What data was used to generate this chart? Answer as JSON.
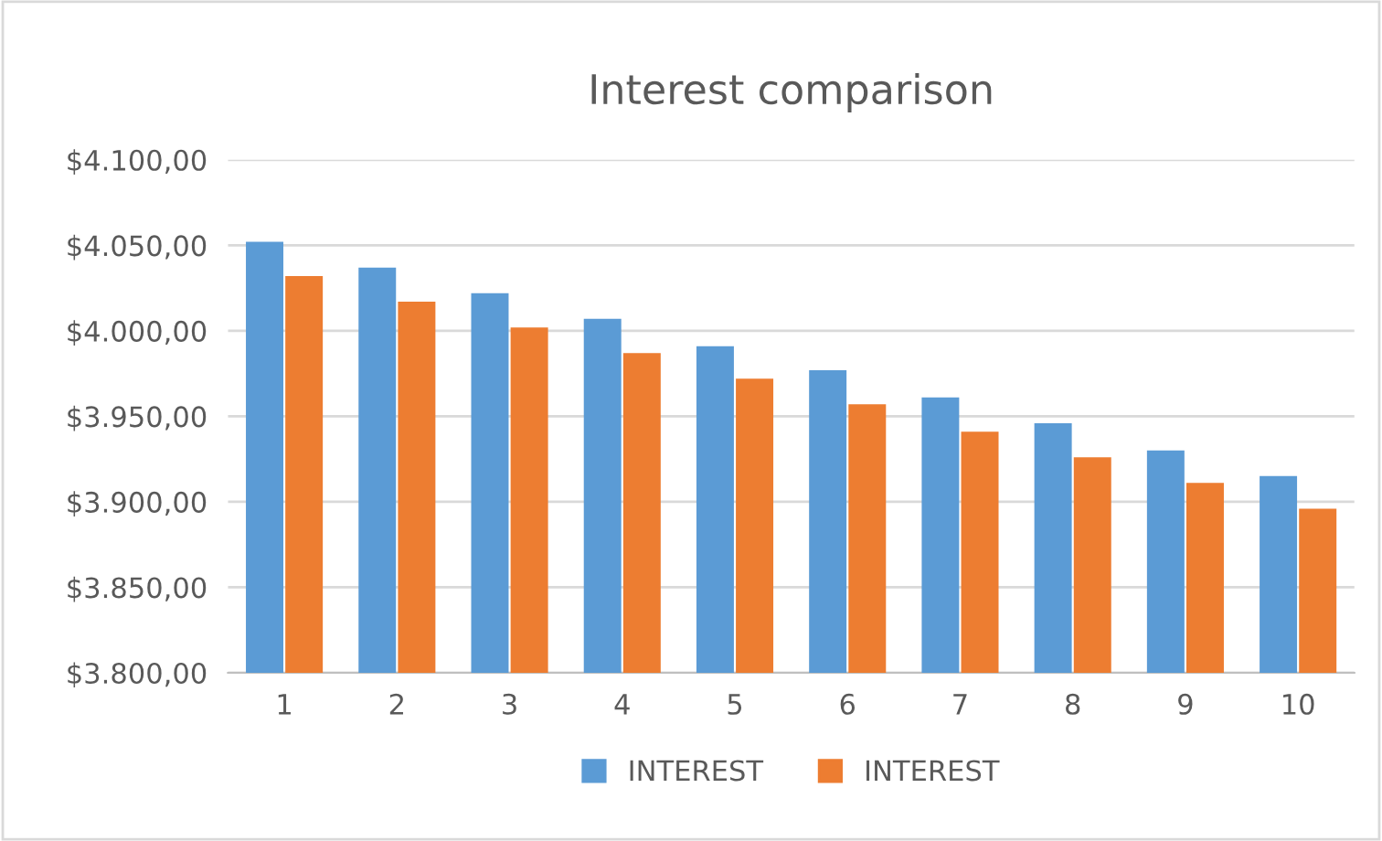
{
  "chart_data": {
    "type": "bar",
    "title": "Interest comparison",
    "categories": [
      "1",
      "2",
      "3",
      "4",
      "5",
      "6",
      "7",
      "8",
      "9",
      "10"
    ],
    "series": [
      {
        "name": "INTEREST",
        "color": "#5b9bd5",
        "values": [
          4052,
          4037,
          4022,
          4007,
          3991,
          3977,
          3961,
          3946,
          3930,
          3915
        ]
      },
      {
        "name": "INTEREST",
        "color": "#ed7d31",
        "values": [
          4032,
          4017,
          4002,
          3987,
          3972,
          3957,
          3941,
          3926,
          3911,
          3896
        ]
      }
    ],
    "ylim": [
      3800,
      4100
    ],
    "yticks": [
      {
        "value": 3800,
        "label": "$3.800,00"
      },
      {
        "value": 3850,
        "label": "$3.850,00"
      },
      {
        "value": 3900,
        "label": "$3.900,00"
      },
      {
        "value": 3950,
        "label": "$3.950,00"
      },
      {
        "value": 4000,
        "label": "$4.000,00"
      },
      {
        "value": 4050,
        "label": "$4.050,00"
      },
      {
        "value": 4100,
        "label": "$4.100,00"
      }
    ],
    "grid": "y",
    "legend": "bottom"
  }
}
